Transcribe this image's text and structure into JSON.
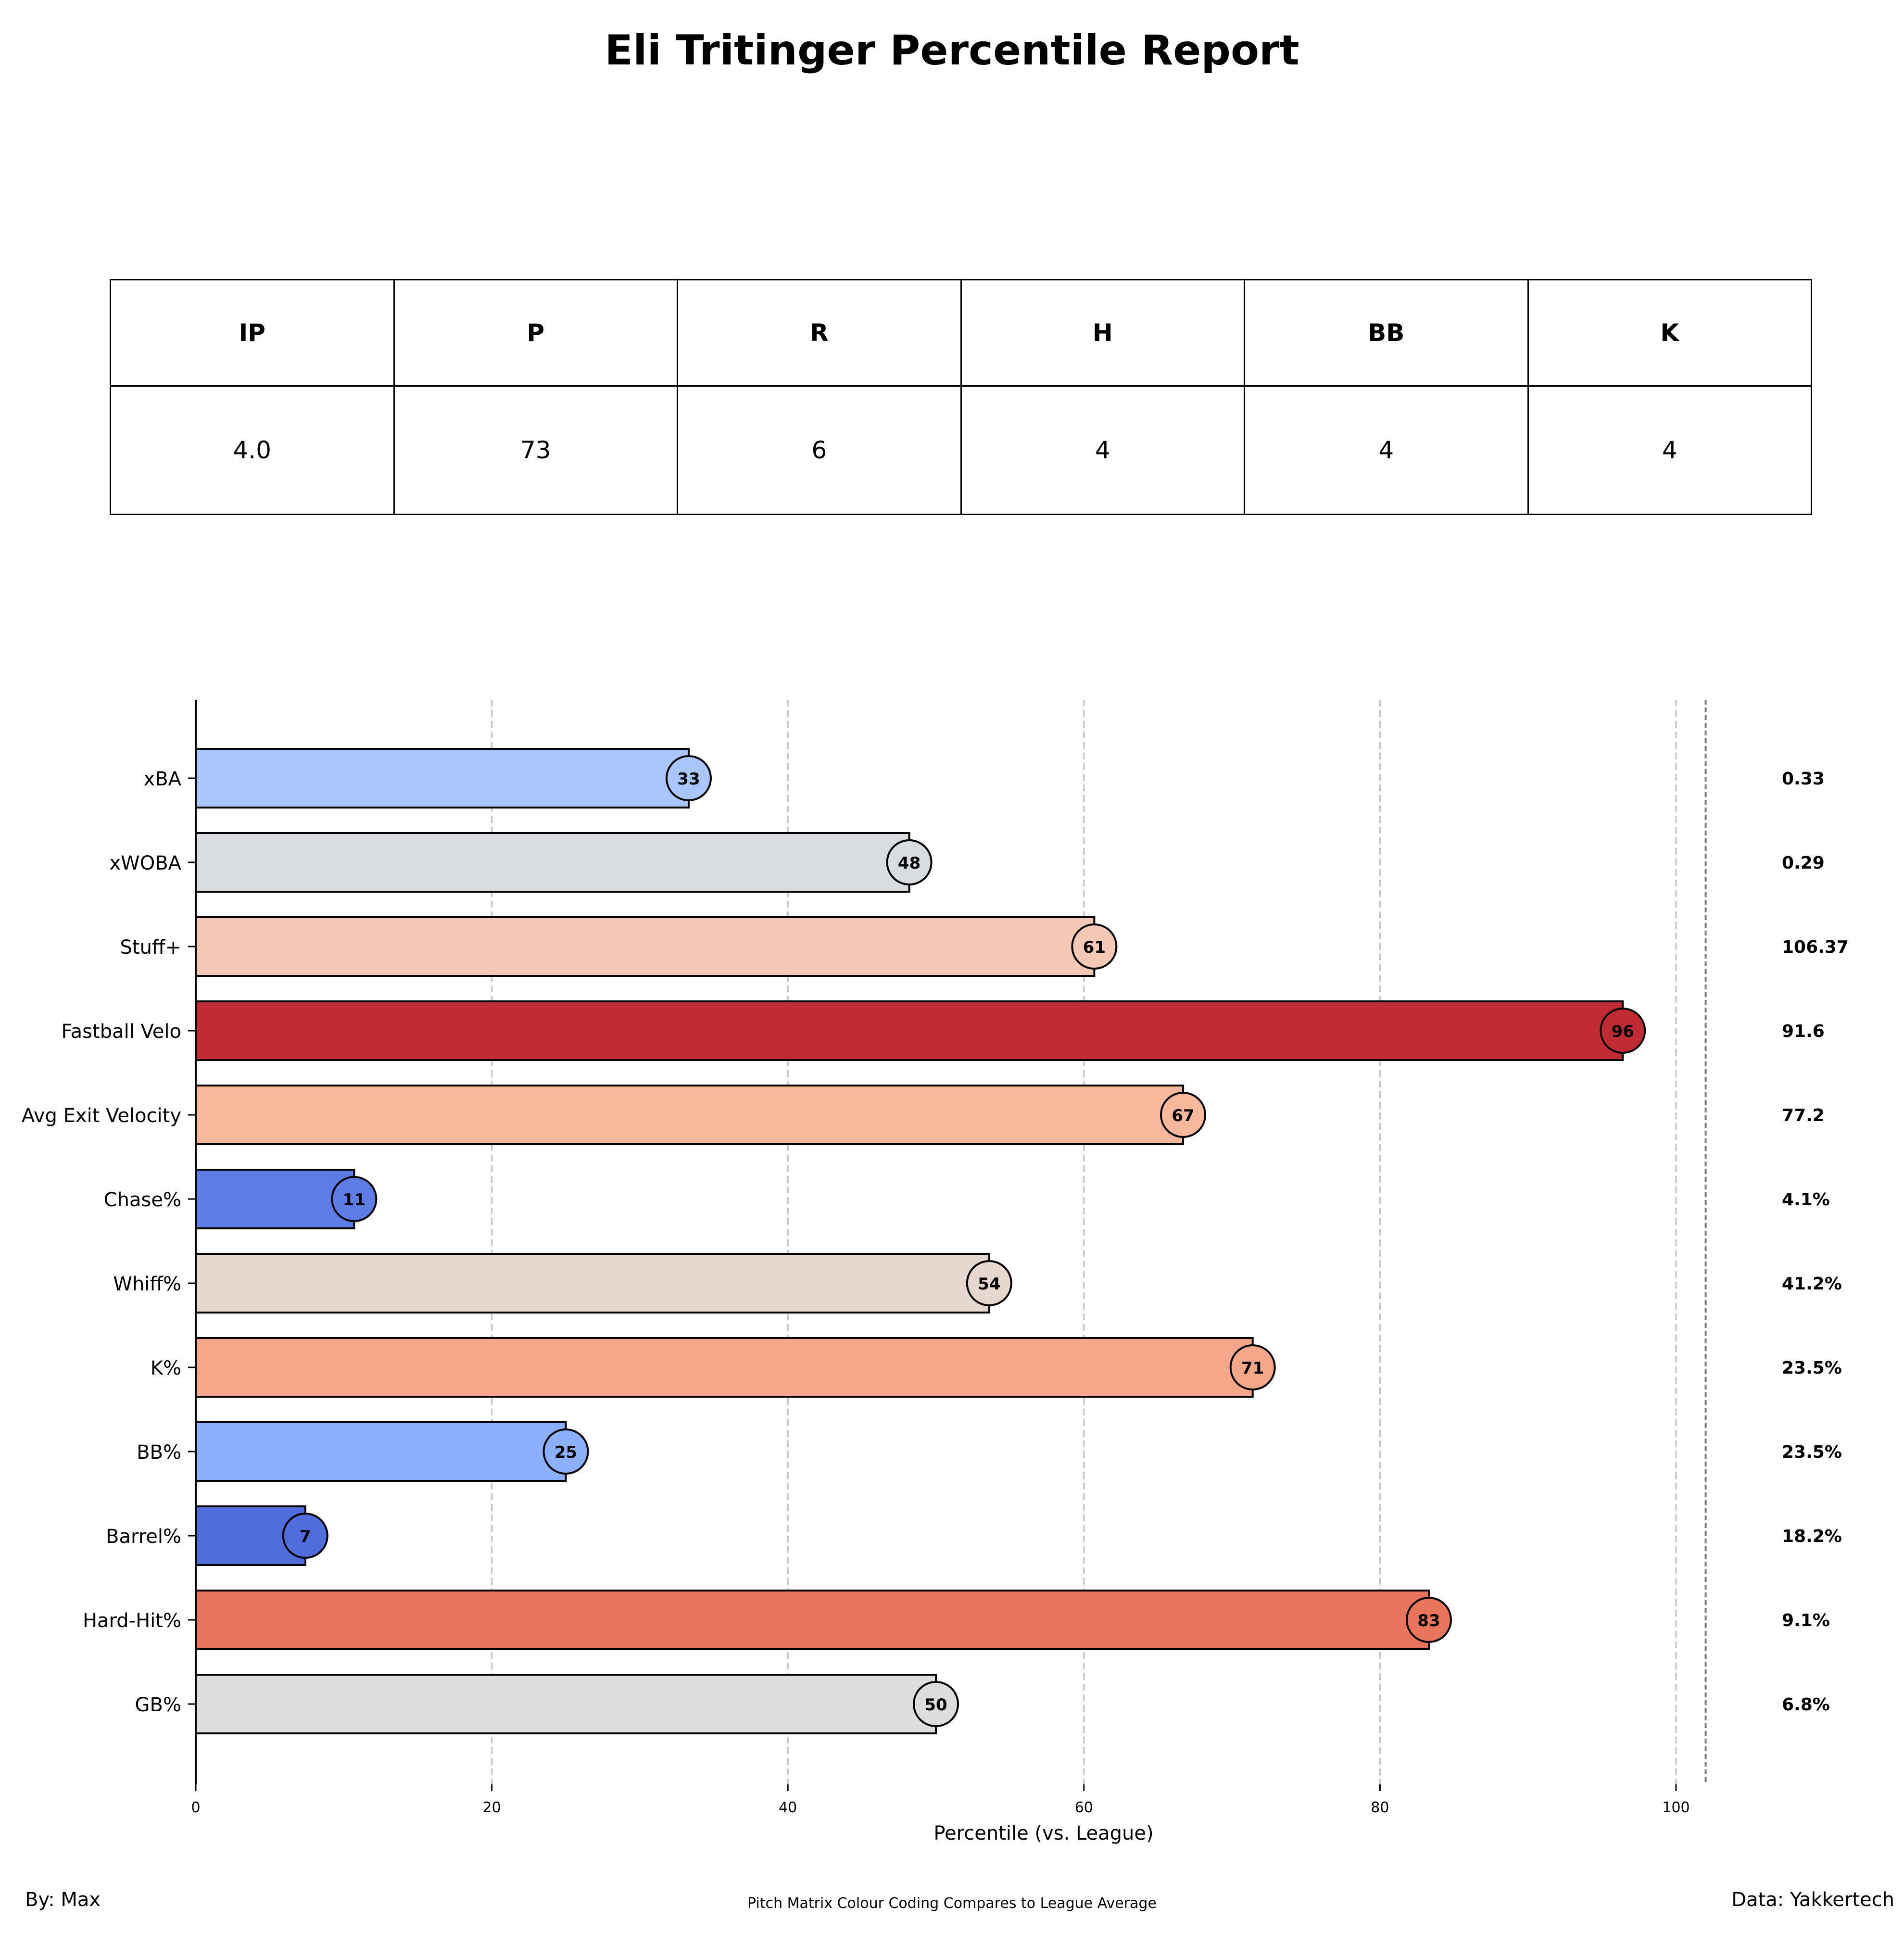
{
  "title": "Eli Tritinger Percentile Report",
  "stats_table": {
    "headers": [
      "IP",
      "P",
      "R",
      "H",
      "BB",
      "K"
    ],
    "values": [
      "4.0",
      "73",
      "6",
      "4",
      "4",
      "4"
    ]
  },
  "chart_data": {
    "type": "bar",
    "orientation": "horizontal",
    "xlabel": "Percentile (vs. League)",
    "xlim": [
      0,
      102
    ],
    "xticks": [
      0,
      20,
      40,
      60,
      80,
      100
    ],
    "grid": true,
    "categories": [
      "xBA",
      "xWOBA",
      "Stuff+",
      "Fastball Velo",
      "Avg Exit Velocity",
      "Chase%",
      "Whiff%",
      "K%",
      "BB%",
      "Barrel%",
      "Hard-Hit%",
      "GB%"
    ],
    "values": [
      33.3,
      48.2,
      60.7,
      96.4,
      66.7,
      10.7,
      53.6,
      71.4,
      25.0,
      7.4,
      83.3,
      50.0
    ],
    "percentile_labels": [
      "33",
      "48",
      "61",
      "96",
      "67",
      "11",
      "54",
      "71",
      "25",
      "7",
      "83",
      "50"
    ],
    "stat_values": [
      "0.33",
      "0.29",
      "106.37",
      "91.6",
      "77.2",
      "4.1%",
      "41.2%",
      "23.5%",
      "23.5%",
      "18.2%",
      "9.1%",
      "6.8%"
    ],
    "colors": [
      "#aac7fd",
      "#d9dce1",
      "#f3c8b5",
      "#c12b33",
      "#f7b89c",
      "#5d7ce6",
      "#e6d7cf",
      "#f5a889",
      "#8db0fe",
      "#516ddb",
      "#e7745b",
      "#dddddd"
    ]
  },
  "footer": {
    "left": "By: Max",
    "center": "Pitch Matrix Colour Coding Compares to League Average",
    "right": "Data: Yakkertech"
  }
}
